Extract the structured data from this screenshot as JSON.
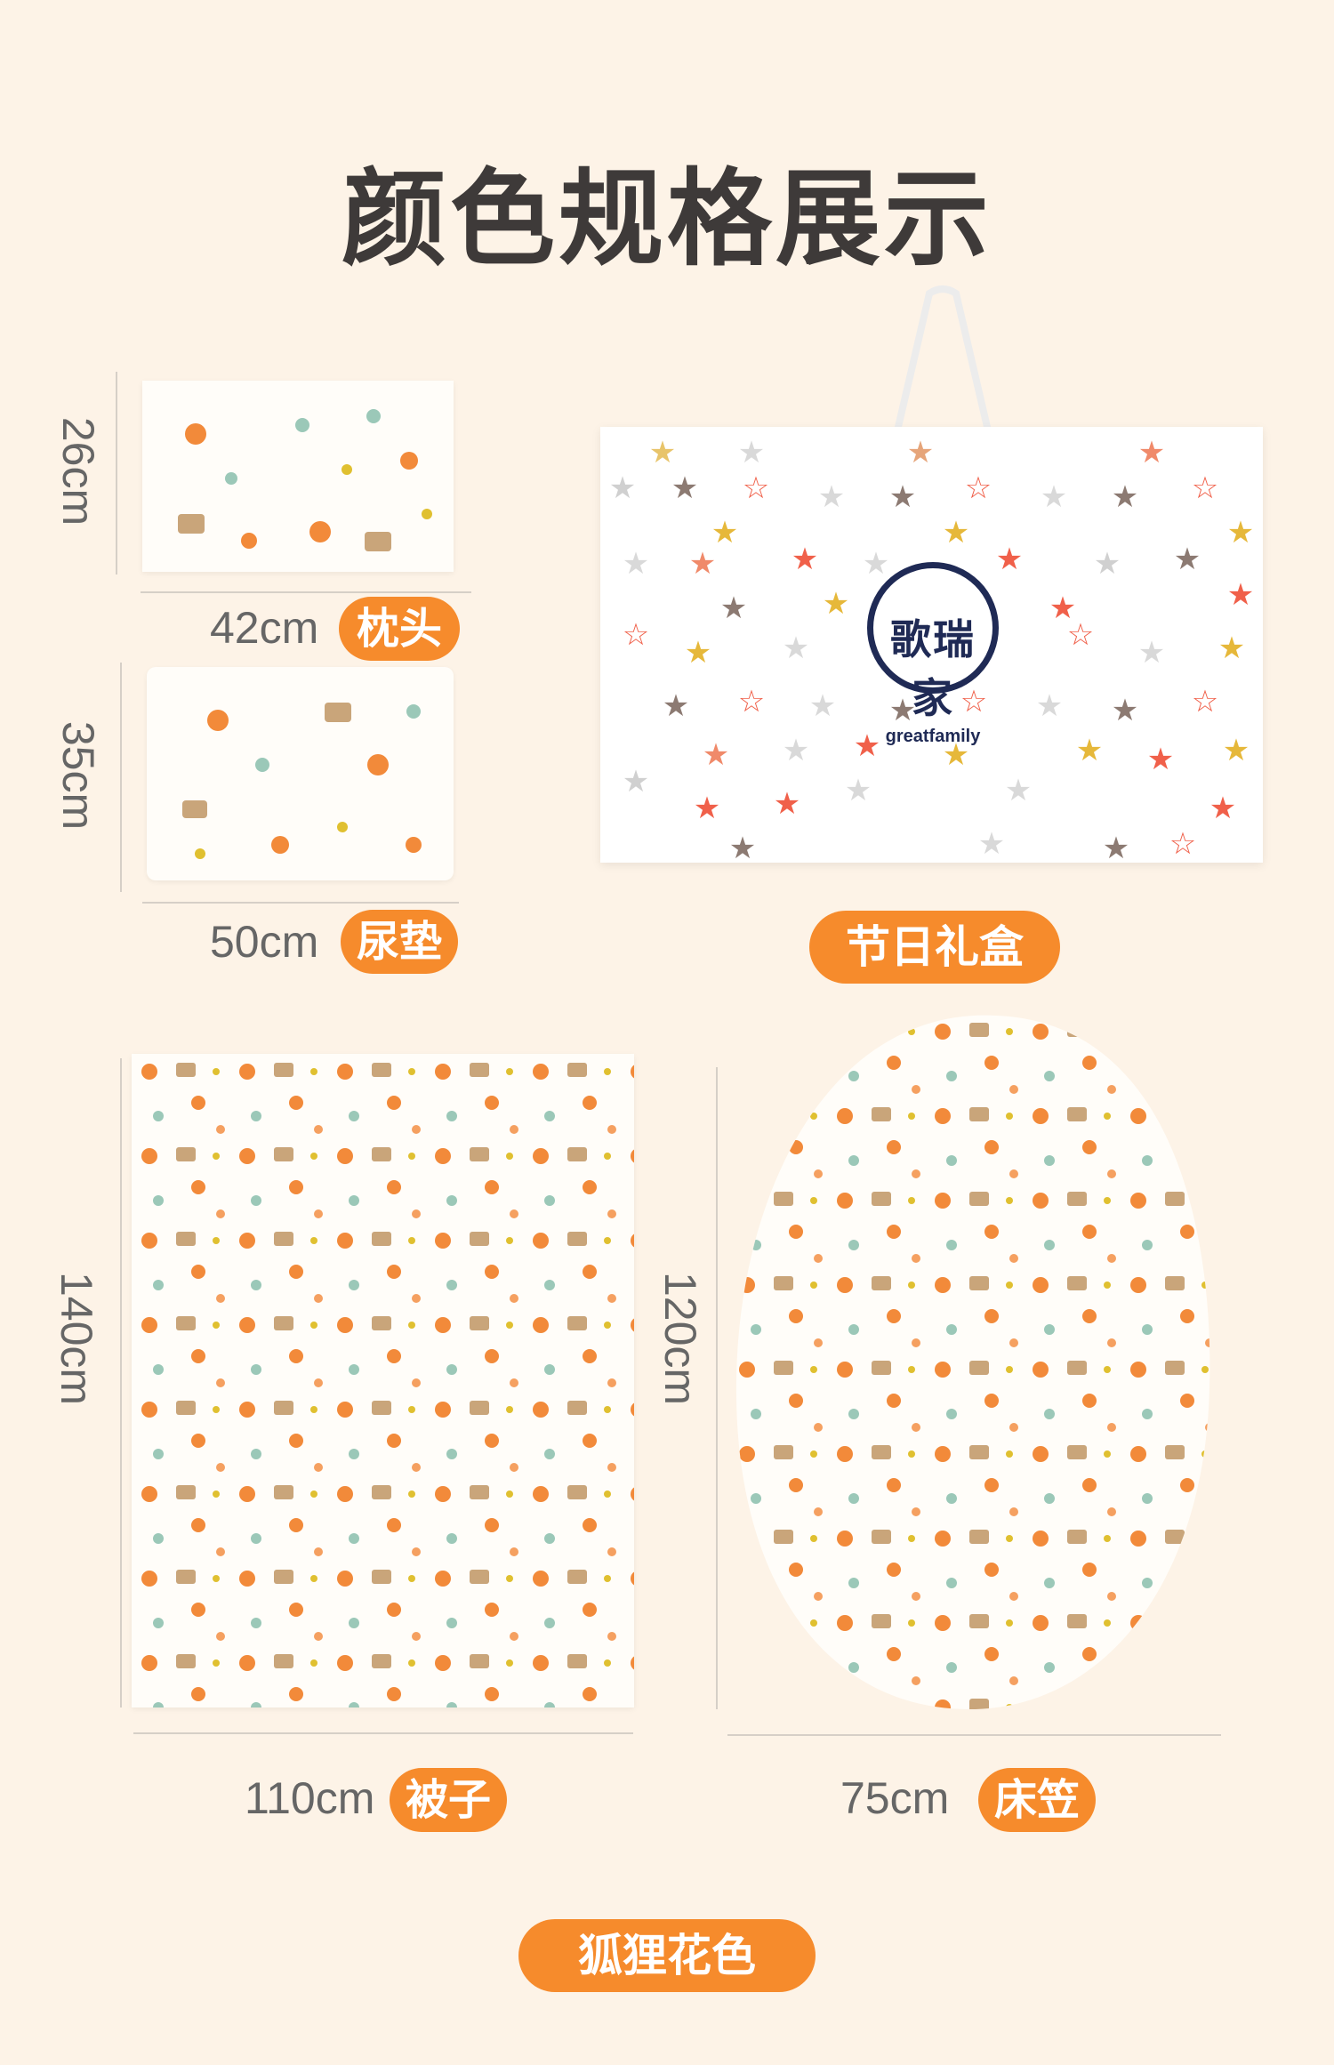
{
  "title": "颜色规格展示",
  "items": {
    "pillow": {
      "width": "42cm",
      "height": "26cm",
      "label": "枕头"
    },
    "pad": {
      "width": "50cm",
      "height": "35cm",
      "label": "尿垫"
    },
    "giftbox": {
      "label": "节日礼盒",
      "logo_cn": "歌瑞家",
      "logo_en": "greatfamily"
    },
    "quilt": {
      "width": "110cm",
      "height": "140cm",
      "label": "被子"
    },
    "sheet": {
      "width": "75cm",
      "height": "120cm",
      "label": "床笠"
    }
  },
  "pattern_name": "狐狸花色",
  "colors": {
    "accent": "#f68b2c",
    "background": "#fdf3e7",
    "logo_navy": "#1f2a55"
  }
}
